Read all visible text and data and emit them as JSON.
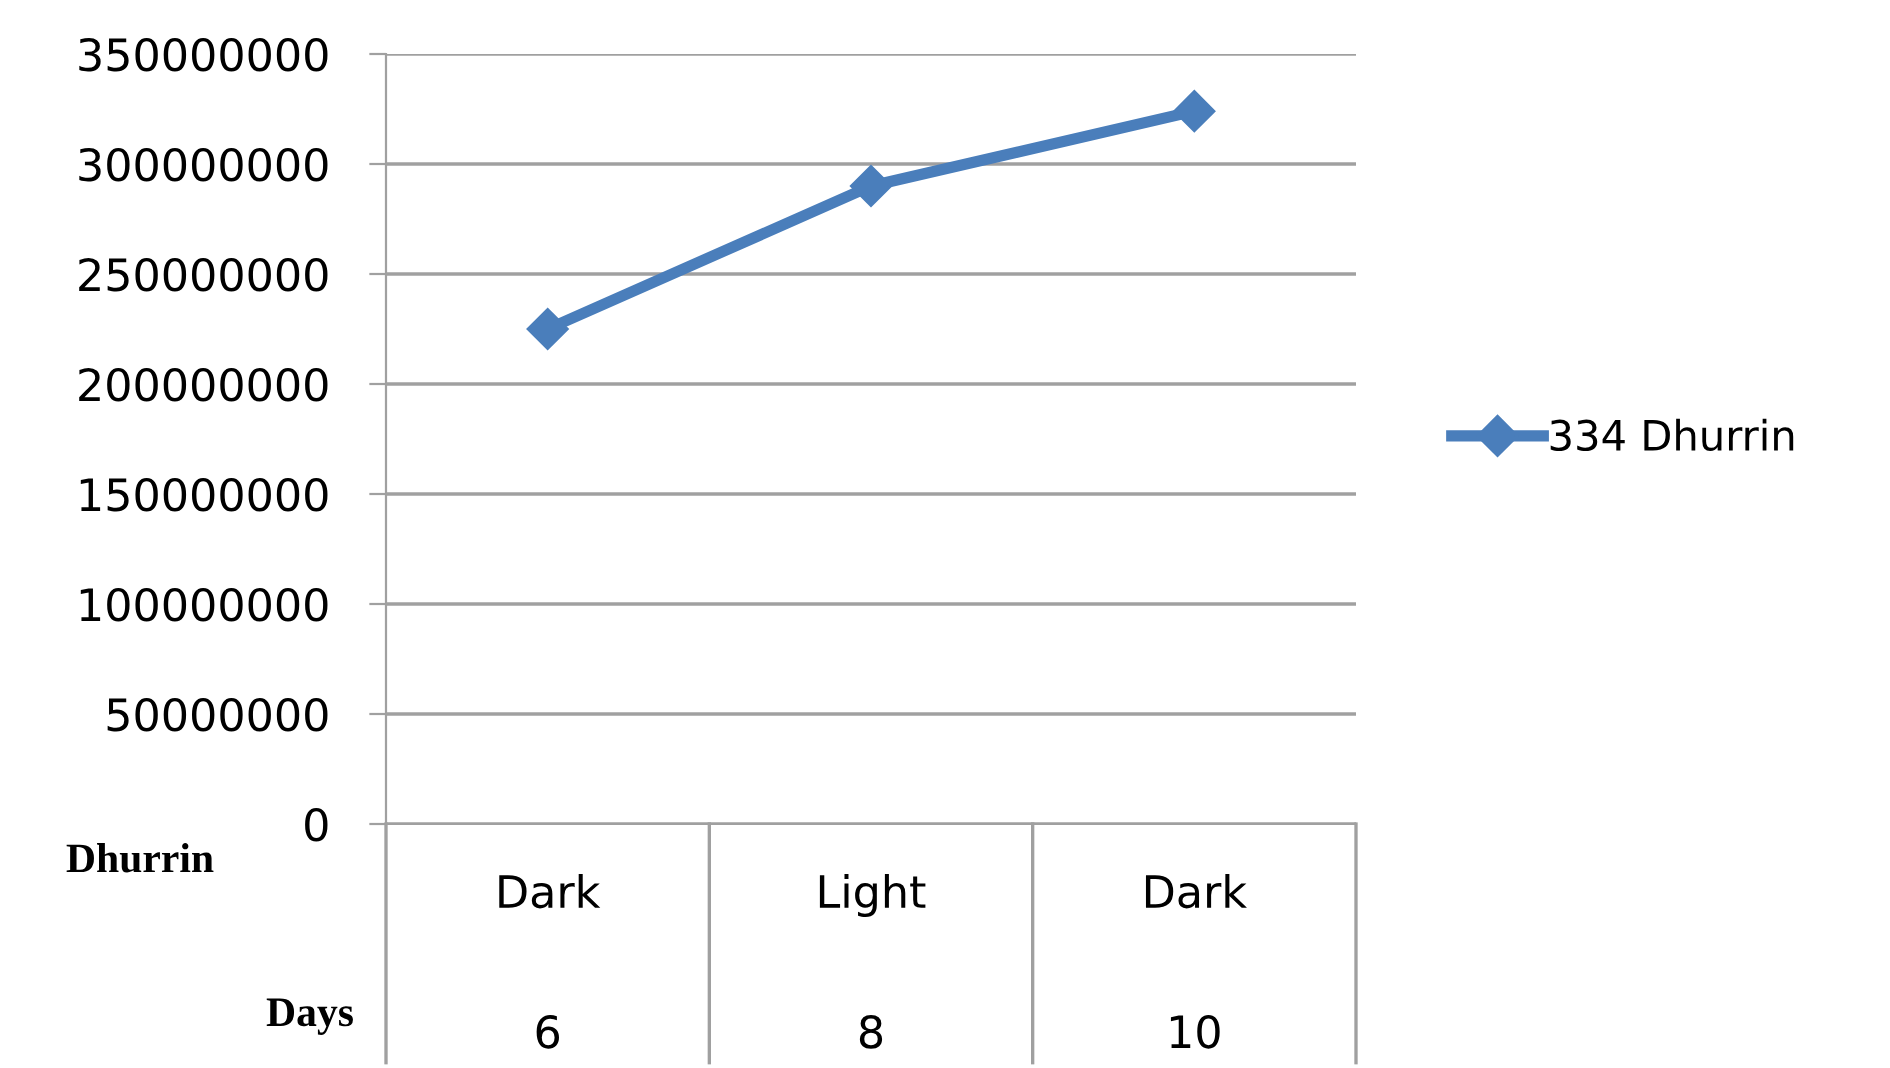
{
  "chart_data": {
    "type": "line",
    "categories": [
      "Dark",
      "Light",
      "Dark"
    ],
    "series": [
      {
        "name": "334 Dhurrin",
        "color": "#4a7ebb",
        "values": [
          225000000,
          290000000,
          324000000
        ]
      }
    ],
    "ylim": [
      0,
      350000000
    ],
    "yticks": [
      0,
      50000000,
      100000000,
      150000000,
      200000000,
      250000000,
      300000000,
      350000000
    ],
    "grid": "y",
    "legend": "right",
    "marker": "diamond",
    "line_style": "solid",
    "annotations": [
      "Dhurrin",
      "Days",
      "6",
      "8",
      "10"
    ]
  }
}
